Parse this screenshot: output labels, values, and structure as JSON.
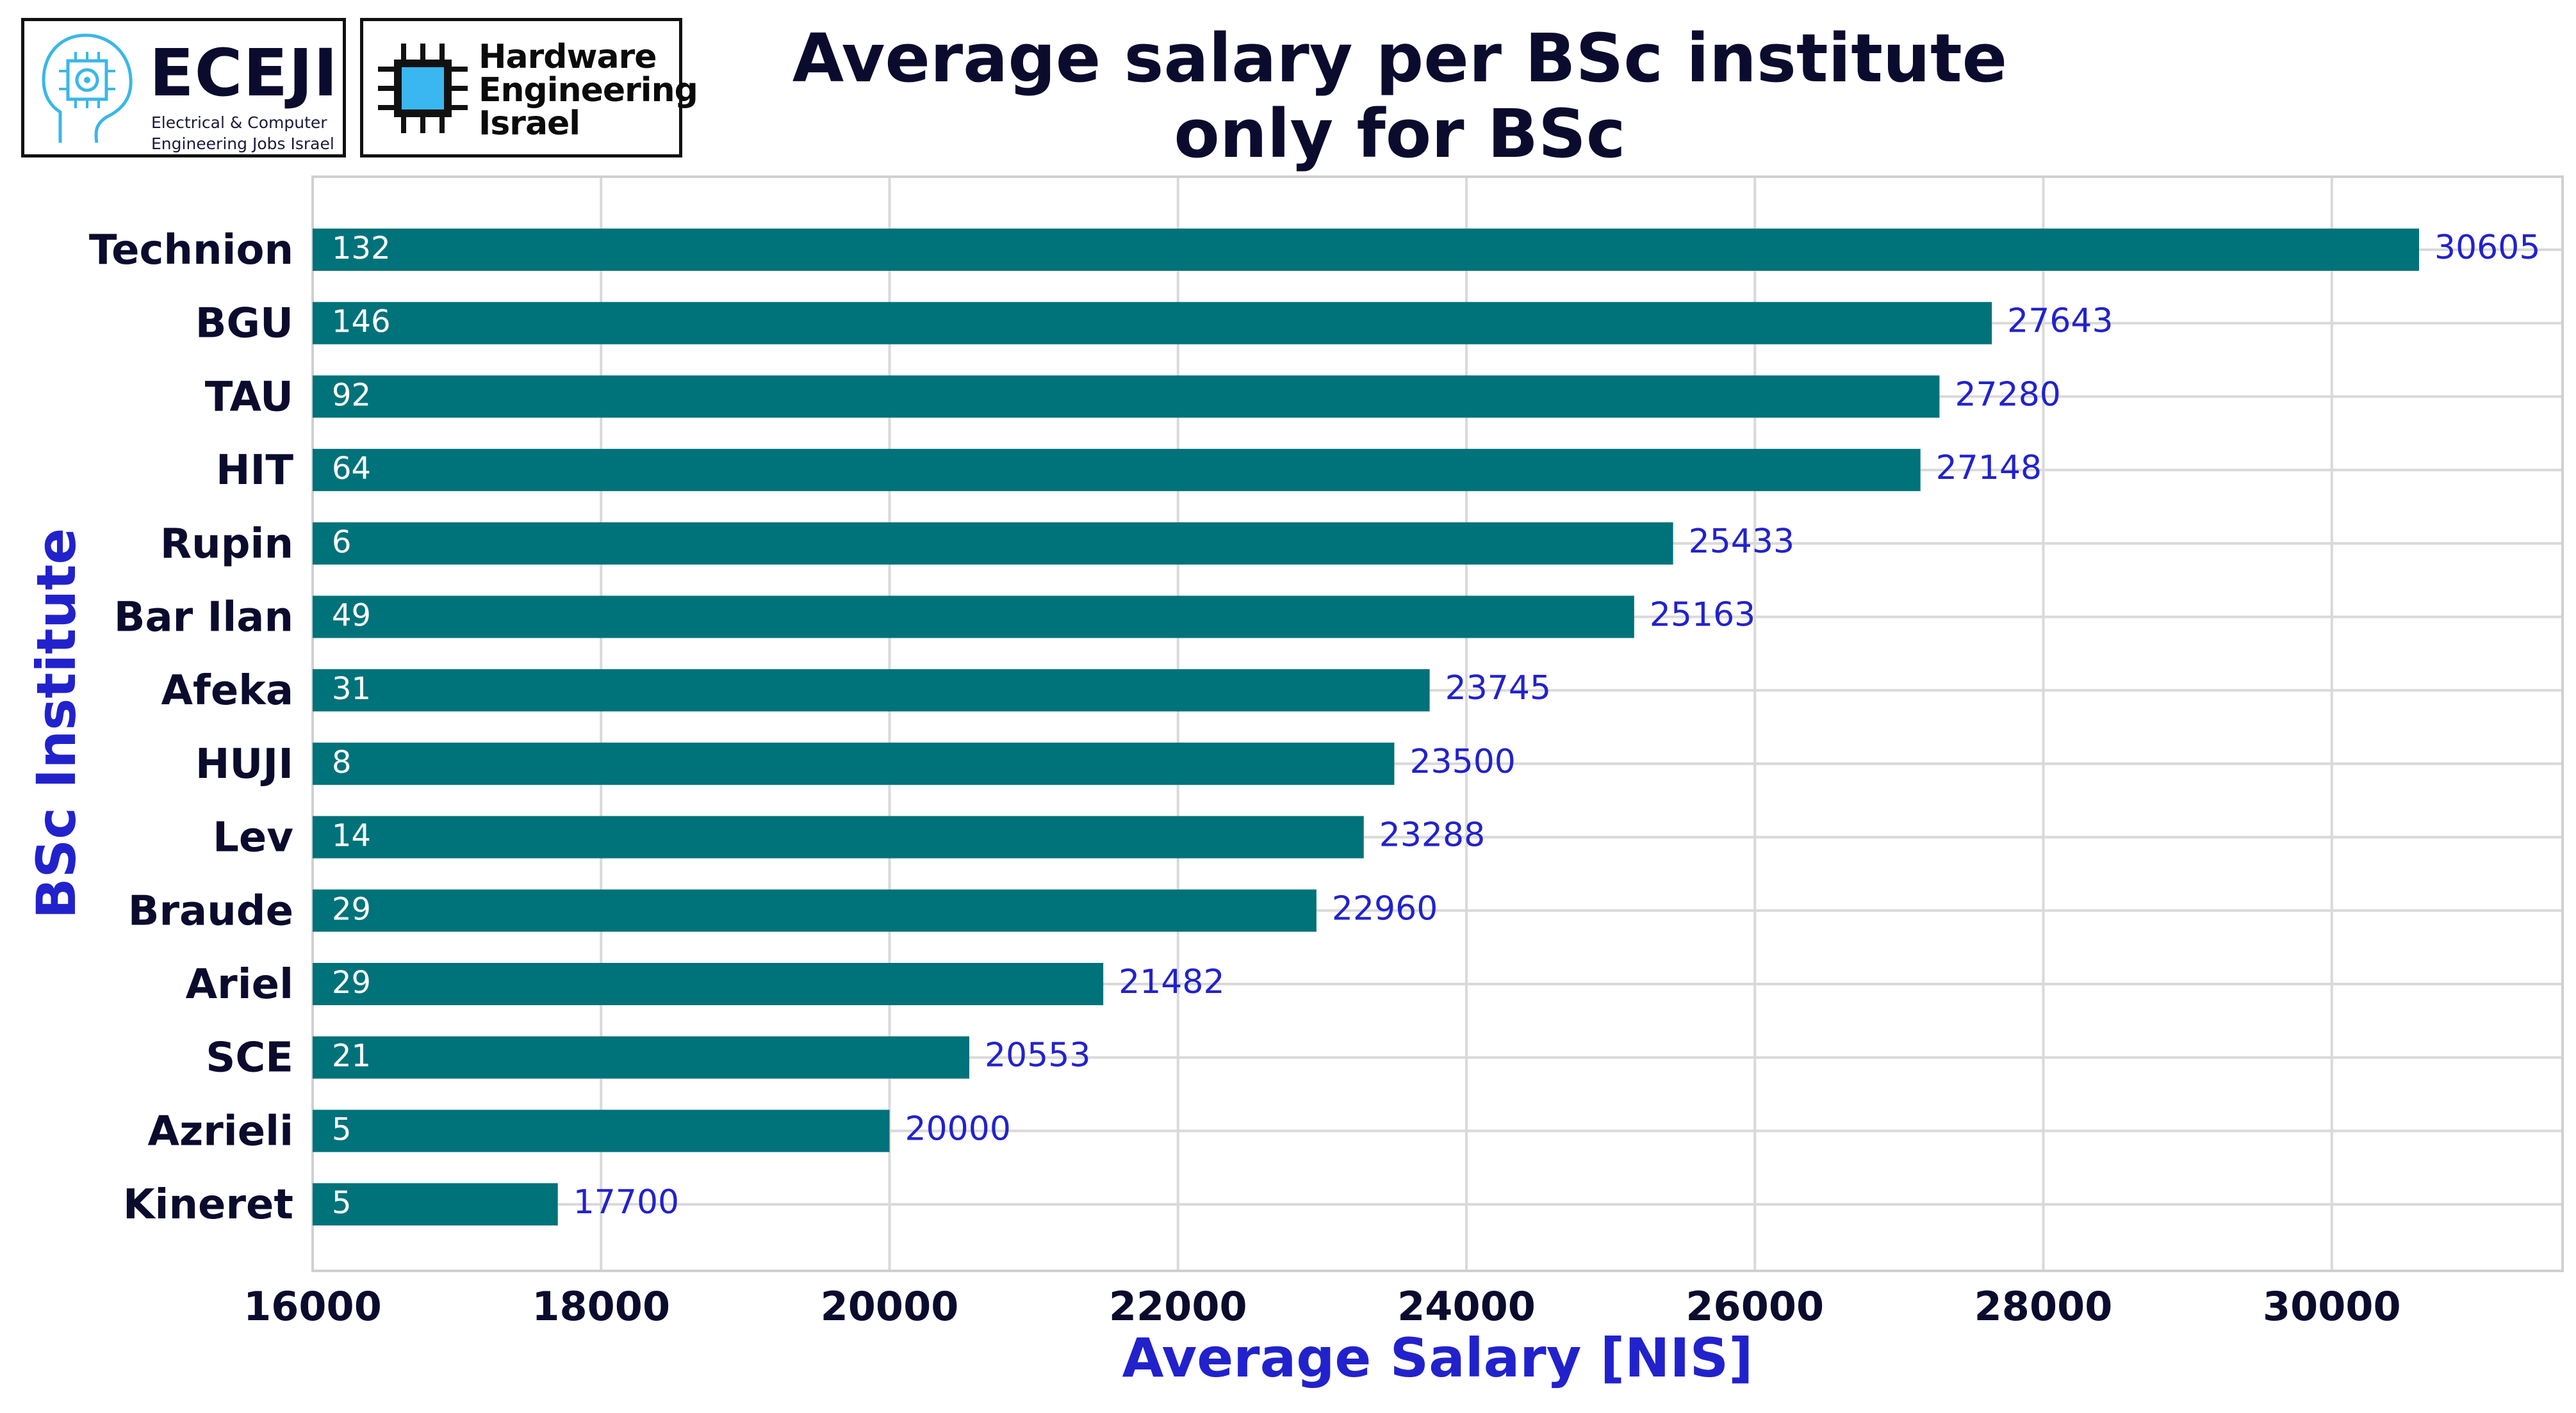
{
  "logos": {
    "eceji": {
      "name": "ECEJI",
      "line1": "Electrical  &  Computer",
      "line2": "Engineering Jobs Israel",
      "icon": "brain-chip-icon"
    },
    "hardware": {
      "line1": "Hardware",
      "line2": "Engineering",
      "line3": "Israel",
      "icon": "cpu-chip-icon"
    }
  },
  "colors": {
    "bar": "#00727a",
    "value_label": "#2222cc",
    "axis_label": "#2222cc",
    "text_dark": "#0b0b2e",
    "grid": "#d9d9d9"
  },
  "chart_data": {
    "type": "bar",
    "orientation": "horizontal",
    "title": "Average salary per BSc institute",
    "subtitle": "only for BSc",
    "xlabel": "Average Salary [NIS]",
    "ylabel": "BSc Institute",
    "xlim": [
      16000,
      31600
    ],
    "xticks": [
      "16000",
      "18000",
      "20000",
      "22000",
      "24000",
      "26000",
      "28000",
      "30000"
    ],
    "grid": true,
    "categories": [
      "Technion",
      "BGU",
      "TAU",
      "HIT",
      "Rupin",
      "Bar Ilan",
      "Afeka",
      "HUJI",
      "Lev",
      "Braude",
      "Ariel",
      "SCE",
      "Azrieli",
      "Kineret"
    ],
    "values": [
      30605,
      27643,
      27280,
      27148,
      25433,
      25163,
      23745,
      23500,
      23288,
      22960,
      21482,
      20553,
      20000,
      17700
    ],
    "counts": [
      132,
      146,
      92,
      64,
      6,
      49,
      31,
      8,
      14,
      29,
      29,
      21,
      5,
      5
    ]
  }
}
